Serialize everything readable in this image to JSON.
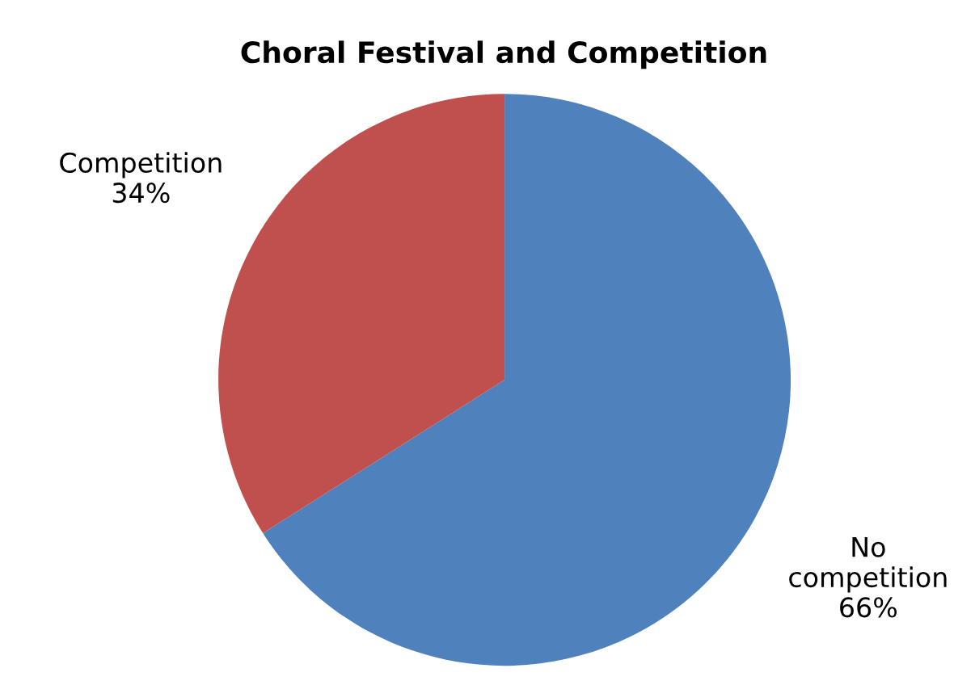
{
  "chart_data": {
    "type": "pie",
    "title": "Choral Festival and Competition",
    "categories": [
      "No competition",
      "Competition"
    ],
    "values": [
      66,
      34
    ],
    "colors": [
      "#4f81bd",
      "#c0504d"
    ],
    "value_labels": [
      "66%",
      "34%"
    ]
  }
}
